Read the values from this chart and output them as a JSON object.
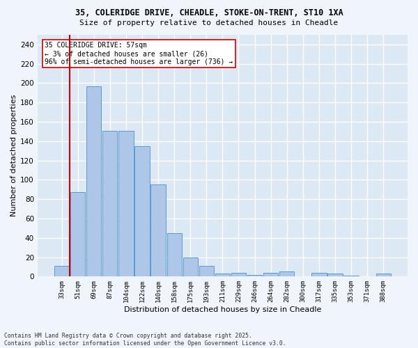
{
  "title1": "35, COLERIDGE DRIVE, CHEADLE, STOKE-ON-TRENT, ST10 1XA",
  "title2": "Size of property relative to detached houses in Cheadle",
  "xlabel": "Distribution of detached houses by size in Cheadle",
  "ylabel": "Number of detached properties",
  "categories": [
    "33sqm",
    "51sqm",
    "69sqm",
    "87sqm",
    "104sqm",
    "122sqm",
    "140sqm",
    "158sqm",
    "175sqm",
    "193sqm",
    "211sqm",
    "229sqm",
    "246sqm",
    "264sqm",
    "282sqm",
    "300sqm",
    "317sqm",
    "335sqm",
    "353sqm",
    "371sqm",
    "388sqm"
  ],
  "values": [
    11,
    87,
    197,
    151,
    151,
    135,
    95,
    45,
    20,
    11,
    3,
    4,
    2,
    4,
    5,
    0,
    4,
    3,
    1,
    0,
    3
  ],
  "bar_color": "#aec6e8",
  "bar_edge_color": "#5b9bd5",
  "background_color": "#dde8f5",
  "grid_color": "#ffffff",
  "vline_color": "#cc0000",
  "annotation_text": "35 COLERIDGE DRIVE: 57sqm\n← 3% of detached houses are smaller (26)\n96% of semi-detached houses are larger (736) →",
  "annotation_box_color": "#ffffff",
  "annotation_box_edge": "#cc0000",
  "footnote": "Contains HM Land Registry data © Crown copyright and database right 2025.\nContains public sector information licensed under the Open Government Licence v3.0.",
  "fig_bg": "#f0f4fb",
  "ylim": [
    0,
    250
  ],
  "yticks": [
    0,
    20,
    40,
    60,
    80,
    100,
    120,
    140,
    160,
    180,
    200,
    220,
    240
  ]
}
